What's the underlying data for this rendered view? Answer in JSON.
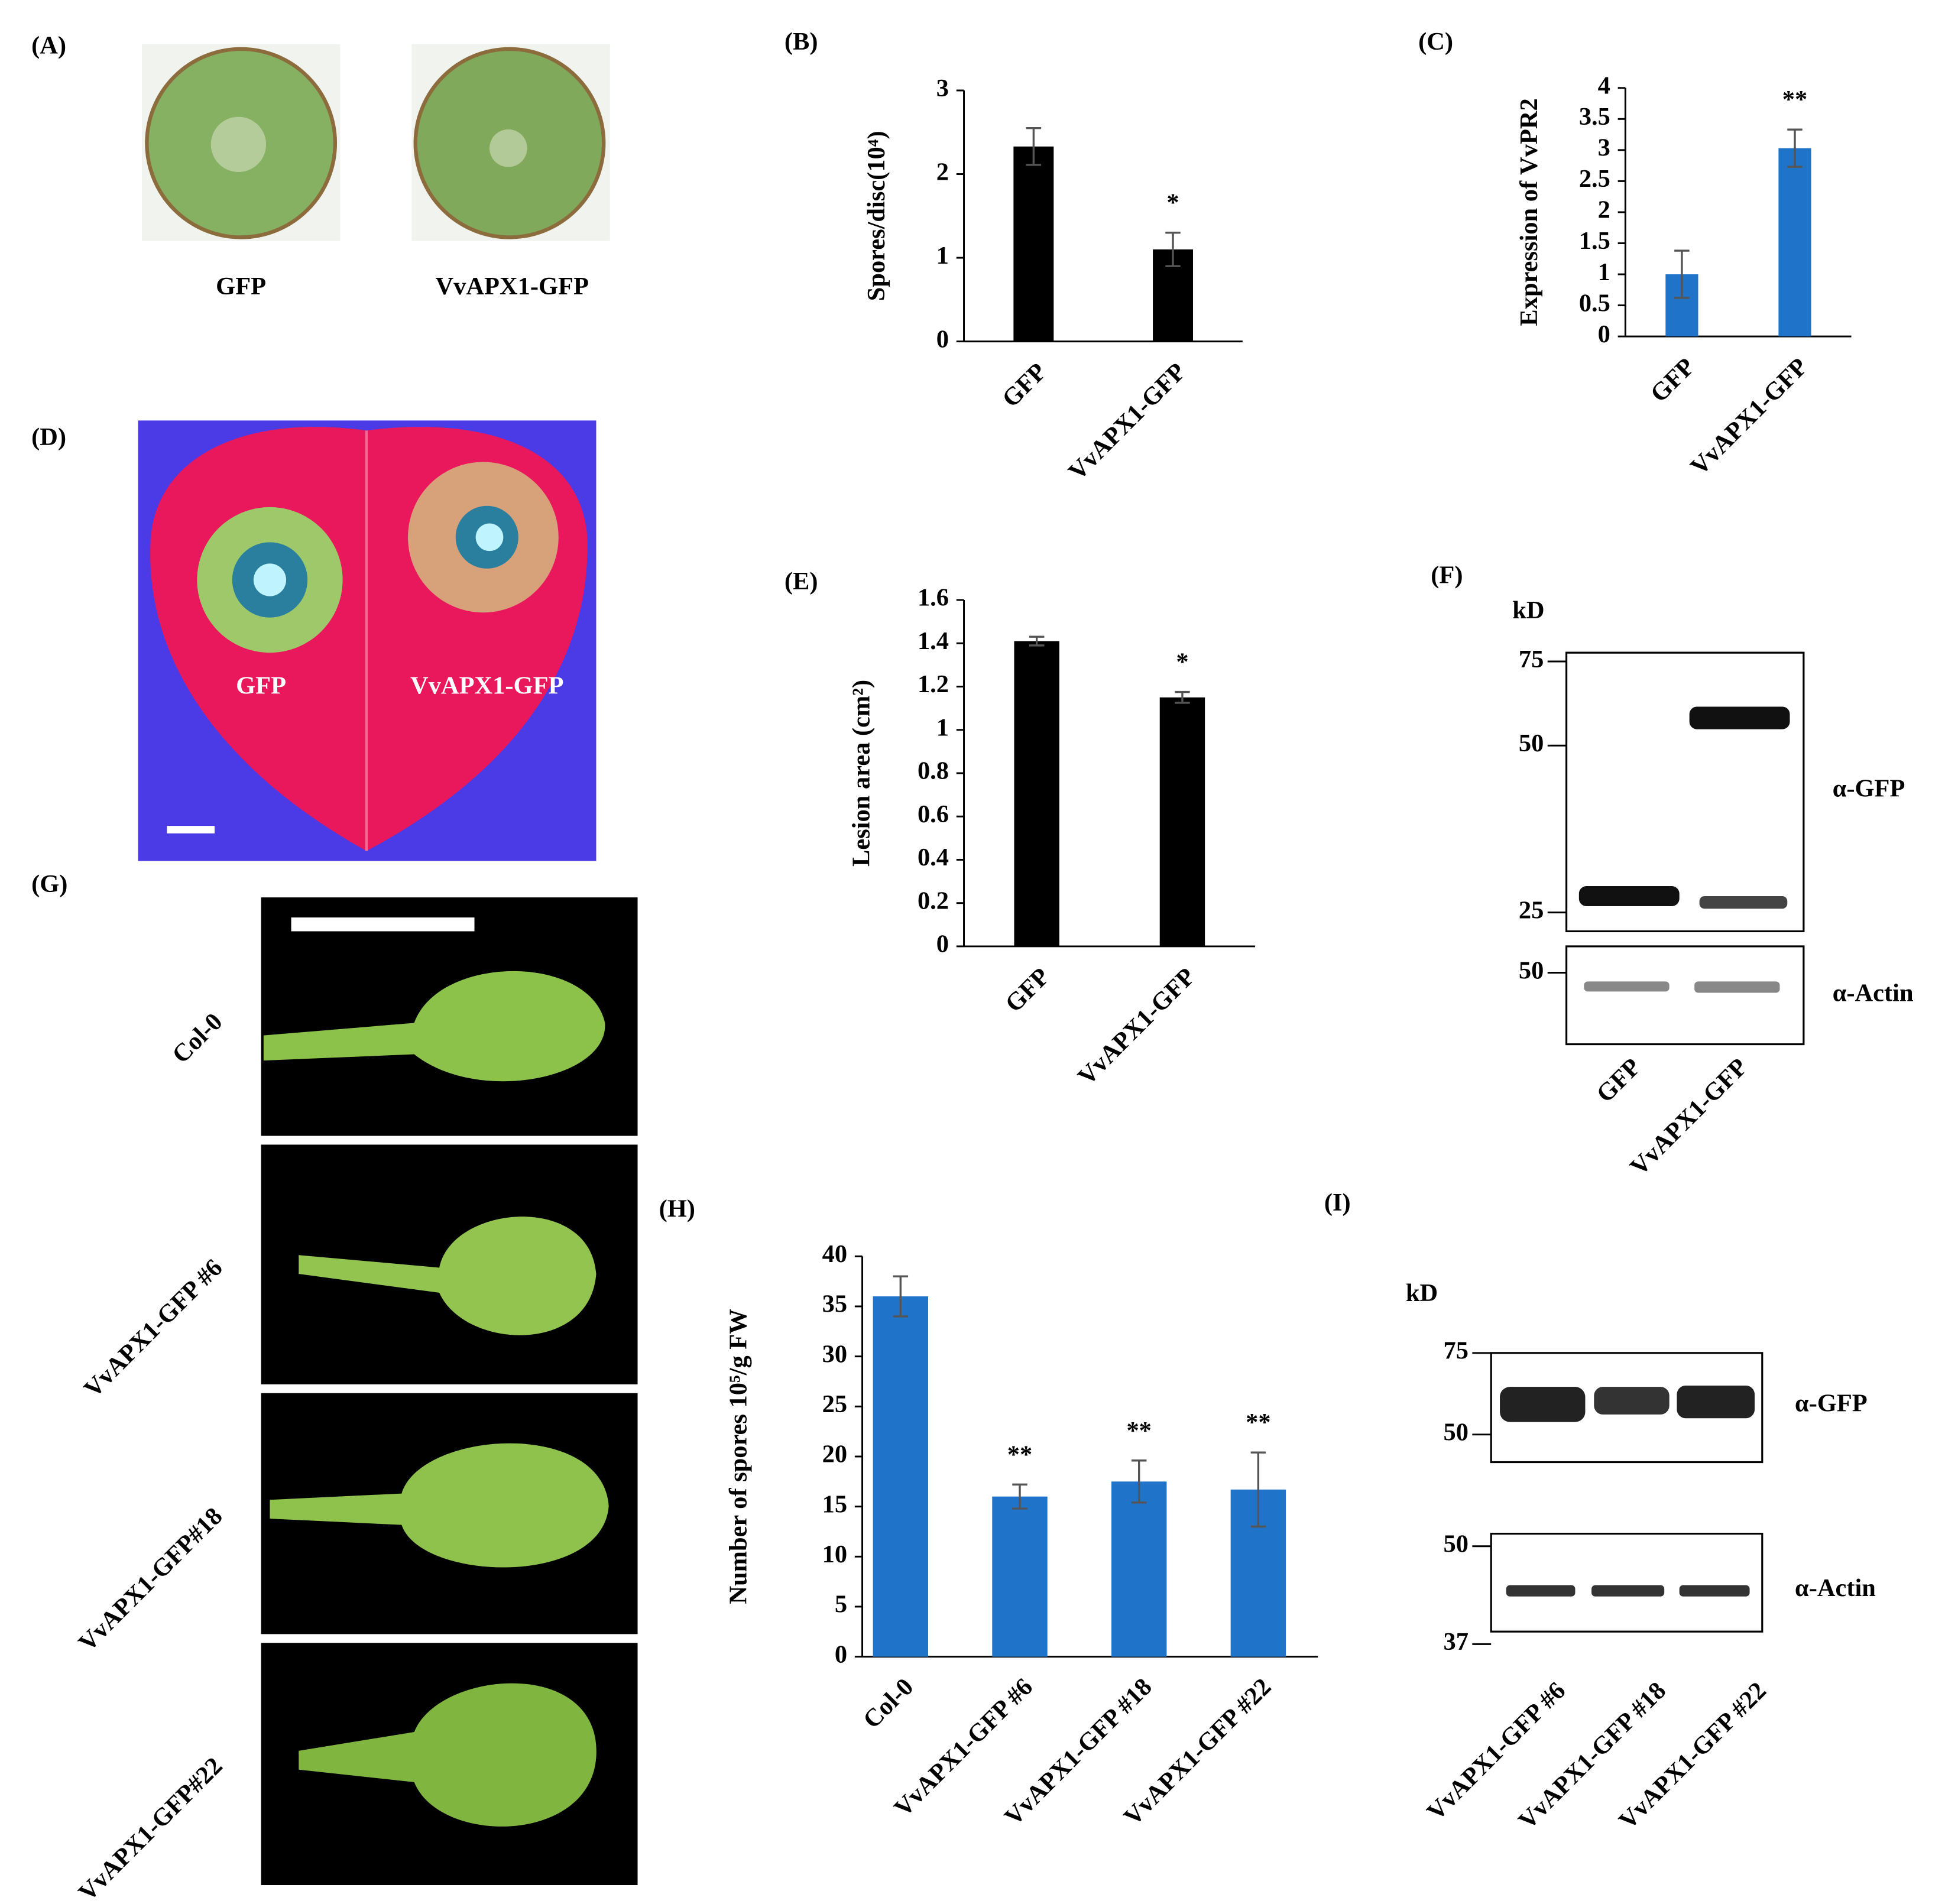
{
  "chart_data": [
    {
      "type": "bar",
      "panel_label": "(B)",
      "y_label": "Spores/disc(10⁴)",
      "categories": [
        "GFP",
        "VvAPX1-GFP"
      ],
      "values": [
        2.33,
        1.1
      ],
      "errors": [
        0.22,
        0.2
      ],
      "color": "#000000",
      "ylim": [
        0,
        3
      ],
      "yticks": [
        0,
        1,
        2,
        3
      ],
      "annotations": [
        {
          "category": "VvAPX1-GFP",
          "text": "*"
        }
      ]
    },
    {
      "type": "bar",
      "panel_label": "(C)",
      "y_label": "Expression of VvPR2",
      "categories": [
        "GFP",
        "VvAPX1-GFP"
      ],
      "values": [
        1.0,
        3.03
      ],
      "errors": [
        0.38,
        0.3
      ],
      "color": "#1f74c9",
      "ylim": [
        0,
        4
      ],
      "yticks": [
        0,
        0.5,
        1,
        1.5,
        2,
        2.5,
        3,
        3.5,
        4
      ],
      "annotations": [
        {
          "category": "VvAPX1-GFP",
          "text": "**"
        }
      ]
    },
    {
      "type": "bar",
      "panel_label": "(E)",
      "y_label": "Lesion area (cm²)",
      "categories": [
        "GFP",
        "VvAPX1-GFP"
      ],
      "values": [
        1.41,
        1.15
      ],
      "errors": [
        0.02,
        0.025
      ],
      "color": "#000000",
      "ylim": [
        0,
        1.6
      ],
      "yticks": [
        0,
        0.2,
        0.4,
        0.6,
        0.8,
        1,
        1.2,
        1.4,
        1.6
      ],
      "annotations": [
        {
          "category": "VvAPX1-GFP",
          "text": "*"
        }
      ]
    },
    {
      "type": "bar",
      "panel_label": "(H)",
      "y_label": "Number of spores 10⁵/g FW",
      "categories": [
        "Col-0",
        "VvAPX1-GFP #6",
        "VvAPX1-GFP #18",
        "VvAPX1-GFP #22"
      ],
      "values": [
        36,
        16,
        17.5,
        16.7
      ],
      "errors": [
        2,
        1.2,
        2.1,
        3.7
      ],
      "color": "#1f74c9",
      "ylim": [
        0,
        40
      ],
      "yticks": [
        0,
        5,
        10,
        15,
        20,
        25,
        30,
        35,
        40
      ],
      "annotations": [
        {
          "category": "VvAPX1-GFP #6",
          "text": "**"
        },
        {
          "category": "VvAPX1-GFP #18",
          "text": "**"
        },
        {
          "category": "VvAPX1-GFP #22",
          "text": "**"
        }
      ]
    }
  ],
  "images": {
    "A": {
      "label": "(A)",
      "captions": [
        "GFP",
        "VvAPX1-GFP"
      ]
    },
    "D": {
      "label": "(D)",
      "captions": [
        "GFP",
        "VvAPX1-GFP"
      ]
    },
    "F": {
      "label": "(F)",
      "unit": "kD",
      "markers": [
        "75",
        "50",
        "25",
        "50"
      ],
      "antibodies": [
        "α-GFP",
        "α-Actin"
      ],
      "lanes": [
        "GFP",
        "VvAPX1-GFP"
      ]
    },
    "G": {
      "label": "(G)",
      "rows": [
        "Col-0",
        "VvAPX1-GFP #6",
        "VvAPX1-GFP#18",
        "VvAPX1-GFP#22"
      ]
    },
    "I": {
      "label": "(I)",
      "unit": "kD",
      "markers": [
        "75",
        "50",
        "50",
        "37"
      ],
      "antibodies": [
        "α-GFP",
        "α-Actin"
      ],
      "lanes": [
        "VvAPX1-GFP  #6",
        "VvAPX1-GFP #18",
        "VvAPX1-GFP #22"
      ]
    }
  }
}
